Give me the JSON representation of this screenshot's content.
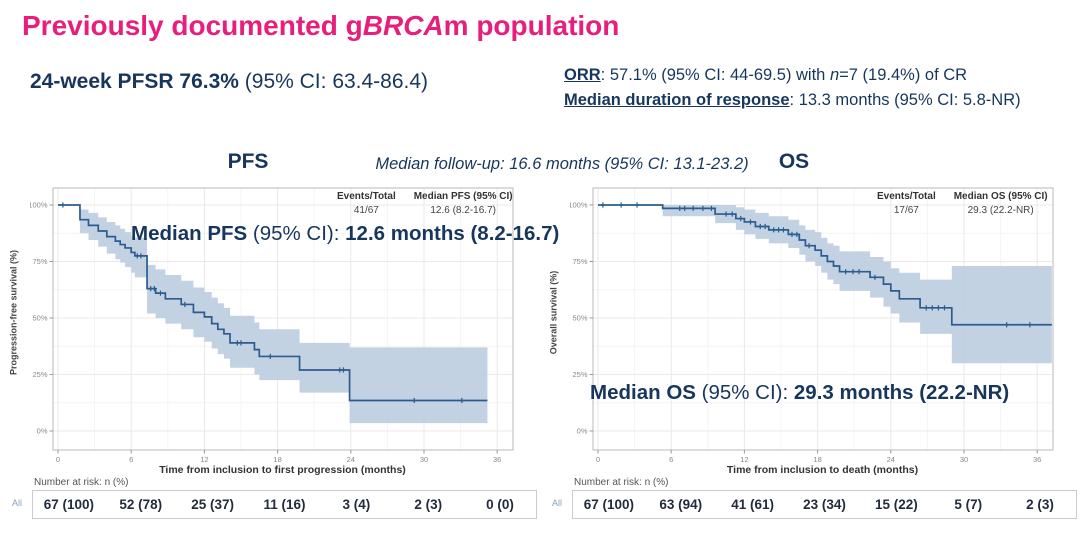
{
  "slide": {
    "title": {
      "pre": "Previously documented g",
      "italic": "BRCA",
      "post": "m population"
    },
    "pfsr": {
      "bold": "24-week PFSR 76.3%",
      "rest": " (95% CI: 63.4-86.4)"
    },
    "orr": {
      "label": "ORR",
      "before_n": ": 57.1% (95% CI: 44-69.5) with ",
      "n_italic": "n",
      "after_n": "=7 (19.4%) of CR"
    },
    "dor": {
      "label": "Median duration of response",
      "rest": ": 13.3 months (95% CI: 5.8-NR)"
    },
    "followup": "Median follow-up: 16.6 months (95% CI: 13.1-23.2)"
  },
  "colors": {
    "title_pink": "#e81e7c",
    "navy_text": "#17365d",
    "km_line": "#2b5c8f",
    "km_band": "#bccde0",
    "grid_major": "#e9e9e9",
    "grid_minor": "#f4f4f4",
    "plot_border": "#b9b9b9",
    "axis_text": "#888888",
    "risk_border": "#cccccc"
  },
  "chart_data": [
    {
      "type": "line",
      "subtype": "kaplan-meier-step-curve-with-ci-band",
      "title": "PFS",
      "xlabel": "Time from inclusion to first progression (months)",
      "ylabel": "Progression-free survival (%)",
      "xlim": [
        -0.5,
        37.5
      ],
      "ylim": [
        0,
        100
      ],
      "xticks": [
        0,
        6,
        12,
        18,
        24,
        30,
        36
      ],
      "yticks": [
        "0%",
        "25%",
        "50%",
        "75%",
        "100%"
      ],
      "grid": true,
      "legend": {
        "position": "top-right",
        "col1_header": "Events/Total",
        "col1_value": "41/67",
        "col2_header": "Median PFS (95% CI)",
        "col2_value": "12.6 (8.2-16.7)"
      },
      "annotation": {
        "bold1": "Median PFS",
        "mid": " (95% CI): ",
        "bold2": "12.6 months (8.2-16.7)"
      },
      "steps": [
        [
          0,
          100,
          100,
          100
        ],
        [
          1.8,
          93.5,
          87.5,
          98
        ],
        [
          2.5,
          91,
          84.5,
          96.5
        ],
        [
          3.3,
          88.5,
          81.5,
          94.5
        ],
        [
          4.0,
          86,
          78.5,
          92.5
        ],
        [
          4.7,
          84,
          76,
          91
        ],
        [
          5.1,
          82.5,
          74.5,
          89.5
        ],
        [
          5.5,
          81,
          72.5,
          88
        ],
        [
          6.0,
          79,
          70,
          86.5
        ],
        [
          6.3,
          77.5,
          68,
          85.5
        ],
        [
          7.3,
          63,
          52,
          73.5
        ],
        [
          8.0,
          61,
          50,
          71.5
        ],
        [
          8.8,
          58.5,
          47.5,
          69
        ],
        [
          10.1,
          56,
          45,
          66.5
        ],
        [
          11.1,
          52.5,
          41.5,
          63.5
        ],
        [
          12.0,
          50.5,
          39.5,
          61.5
        ],
        [
          12.6,
          47.5,
          36.5,
          59
        ],
        [
          13.1,
          45,
          34,
          56.5
        ],
        [
          13.6,
          43,
          32,
          54.5
        ],
        [
          14.1,
          39,
          28,
          51
        ],
        [
          16.1,
          36,
          25,
          48
        ],
        [
          16.5,
          33,
          22.5,
          45
        ],
        [
          19.8,
          27,
          17,
          39
        ],
        [
          23.9,
          13.5,
          3.5,
          37
        ],
        [
          35.2,
          13.5,
          3.5,
          37
        ]
      ],
      "censors": [
        [
          0.4,
          100
        ],
        [
          6.5,
          77.5
        ],
        [
          6.8,
          77.5
        ],
        [
          7.6,
          63
        ],
        [
          7.9,
          63
        ],
        [
          8.4,
          61
        ],
        [
          10.4,
          56
        ],
        [
          14.7,
          39
        ],
        [
          15.0,
          39
        ],
        [
          17.4,
          33
        ],
        [
          23.1,
          27
        ],
        [
          23.4,
          27
        ],
        [
          29.2,
          13.5
        ],
        [
          33.1,
          13.5
        ]
      ],
      "at_risk": {
        "header": "Number at risk: n (%)",
        "row_label": "All",
        "times": [
          0,
          6,
          12,
          18,
          24,
          30,
          36
        ],
        "values": [
          "67 (100)",
          "52 (78)",
          "25 (37)",
          "11 (16)",
          "3 (4)",
          "2 (3)",
          "0 (0)"
        ]
      }
    },
    {
      "type": "line",
      "subtype": "kaplan-meier-step-curve-with-ci-band",
      "title": "OS",
      "xlabel": "Time from inclusion to death (months)",
      "ylabel": "Overall survival (%)",
      "xlim": [
        -0.5,
        37.5
      ],
      "ylim": [
        0,
        100
      ],
      "xticks": [
        0,
        6,
        12,
        18,
        24,
        30,
        36
      ],
      "yticks": [
        "0%",
        "25%",
        "50%",
        "75%",
        "100%"
      ],
      "grid": true,
      "legend": {
        "position": "top-right",
        "col1_header": "Events/Total",
        "col1_value": "17/67",
        "col2_header": "Median OS (95% CI)",
        "col2_value": "29.3 (22.2-NR)"
      },
      "annotation": {
        "bold1": "Median OS",
        "mid": " (95% CI): ",
        "bold2": "29.3 months (22.2-NR)"
      },
      "steps": [
        [
          0,
          100,
          100,
          100
        ],
        [
          5.3,
          98.5,
          95,
          100
        ],
        [
          9.6,
          96,
          92,
          100
        ],
        [
          11.3,
          94,
          89,
          99
        ],
        [
          12.0,
          92.5,
          87,
          98
        ],
        [
          12.9,
          90.5,
          85,
          96.5
        ],
        [
          14.0,
          89,
          83,
          95
        ],
        [
          15.6,
          87,
          81,
          93.5
        ],
        [
          16.5,
          84.5,
          78,
          91
        ],
        [
          17.0,
          82,
          75,
          89
        ],
        [
          17.8,
          80,
          73,
          88
        ],
        [
          18.3,
          77.5,
          70,
          85.5
        ],
        [
          18.8,
          75,
          67,
          83
        ],
        [
          19.3,
          73,
          65,
          82
        ],
        [
          19.8,
          70.5,
          62,
          79.5
        ],
        [
          22.3,
          68,
          59,
          77
        ],
        [
          23.4,
          65,
          55,
          75
        ],
        [
          24.0,
          62,
          52,
          72
        ],
        [
          24.7,
          58.5,
          48,
          70
        ],
        [
          26.4,
          54.5,
          43,
          67
        ],
        [
          29.0,
          47,
          30,
          73
        ],
        [
          37.2,
          47,
          30,
          73
        ]
      ],
      "censors": [
        [
          0.4,
          100
        ],
        [
          1.9,
          100
        ],
        [
          3.2,
          100
        ],
        [
          6.7,
          98.5
        ],
        [
          7.1,
          98.5
        ],
        [
          7.8,
          98.5
        ],
        [
          8.6,
          98.5
        ],
        [
          9.3,
          98.5
        ],
        [
          10.5,
          96
        ],
        [
          11.0,
          96
        ],
        [
          11.7,
          94
        ],
        [
          12.5,
          92.5
        ],
        [
          13.3,
          90.5
        ],
        [
          13.7,
          90.5
        ],
        [
          14.4,
          89
        ],
        [
          14.8,
          89
        ],
        [
          15.2,
          89
        ],
        [
          15.9,
          87
        ],
        [
          16.3,
          87
        ],
        [
          17.3,
          82
        ],
        [
          20.3,
          70.5
        ],
        [
          20.9,
          70.5
        ],
        [
          21.4,
          70.5
        ],
        [
          22.7,
          68
        ],
        [
          26.9,
          54.5
        ],
        [
          27.4,
          54.5
        ],
        [
          27.9,
          54.5
        ],
        [
          28.4,
          54.5
        ],
        [
          33.5,
          47
        ],
        [
          35.4,
          47
        ]
      ],
      "at_risk": {
        "header": "Number at risk: n (%)",
        "row_label": "All",
        "times": [
          0,
          6,
          12,
          18,
          24,
          30,
          36
        ],
        "values": [
          "67 (100)",
          "63 (94)",
          "41 (61)",
          "23 (34)",
          "15 (22)",
          "5 (7)",
          "2 (3)"
        ]
      }
    }
  ]
}
